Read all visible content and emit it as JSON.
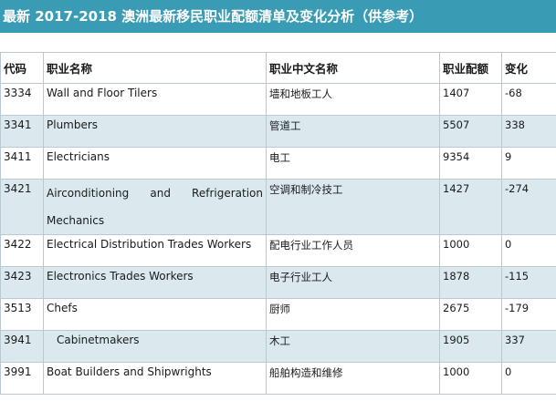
{
  "title": "最新 2017-2018 澳洲最新移民职业配额清单及变化分析（供参考）",
  "headers": {
    "code": "代码",
    "name_en": "职业名称",
    "name_cn": "职业中文名称",
    "quota": "职业配额",
    "change": "变化"
  },
  "rows": [
    {
      "code": "3334",
      "name_en": "Wall and Floor Tilers",
      "name_cn": "墙和地板工人",
      "quota": "1407",
      "change": "-68"
    },
    {
      "code": "3341",
      "name_en": "Plumbers",
      "name_cn": "管道工",
      "quota": "5507",
      "change": "338"
    },
    {
      "code": "3411",
      "name_en": "Electricians",
      "name_cn": "电工",
      "quota": "9354",
      "change": "9"
    },
    {
      "code": "3421",
      "name_en": "Airconditioning and Refrigeration Mechanics",
      "name_cn": "空调和制冷技工",
      "quota": "1427",
      "change": "-274"
    },
    {
      "code": "3422",
      "name_en": "Electrical Distribution Trades Workers",
      "name_cn": "配电行业工作人员",
      "quota": "1000",
      "change": "0"
    },
    {
      "code": "3423",
      "name_en": "Electronics Trades Workers",
      "name_cn": "电子行业工人",
      "quota": "1878",
      "change": "-115"
    },
    {
      "code": "3513",
      "name_en": "Chefs",
      "name_cn": "厨师",
      "quota": "2675",
      "change": "-179"
    },
    {
      "code": "3941",
      "name_en": "Cabinetmakers",
      "name_cn": "木工",
      "quota": "1905",
      "change": "337"
    },
    {
      "code": "3991",
      "name_en": "Boat Builders and Shipwrights",
      "name_cn": "船舶构造和维修",
      "quota": "1000",
      "change": "0"
    }
  ]
}
